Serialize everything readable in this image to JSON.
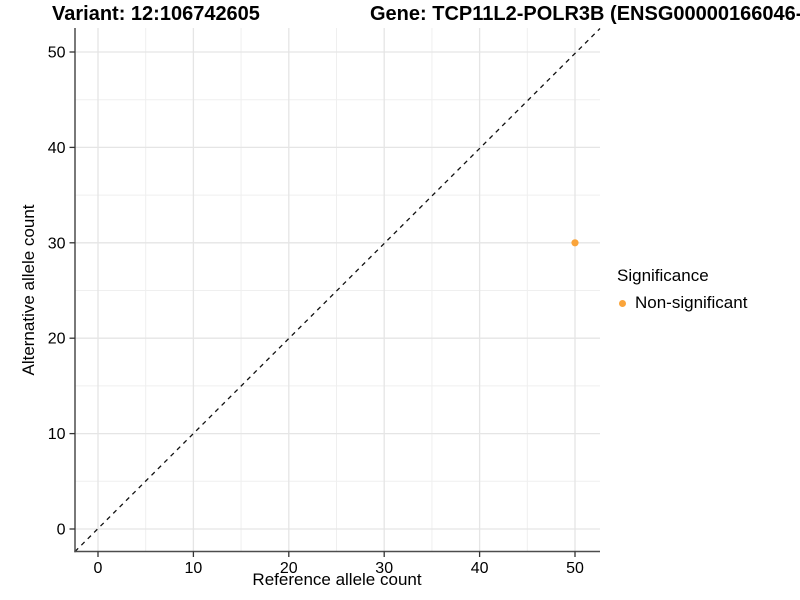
{
  "colors": {
    "background": "#FFFFFF",
    "grid_major": "#E5E5E5",
    "grid_minor": "#EFEFEF",
    "axis_line": "#4D4D4D",
    "tick": "#333333",
    "text": "#000000",
    "point": "#FAA43A"
  },
  "chart_data": {
    "type": "scatter",
    "titles": [
      {
        "id": "variant",
        "text": "Variant: 12:106742605"
      },
      {
        "id": "gene",
        "text": "Gene: TCP11L2-POLR3B (ENSG00000166046-"
      }
    ],
    "xlabel": "Reference allele count",
    "ylabel": "Alternative allele count",
    "xlim": [
      0,
      50
    ],
    "ylim": [
      0,
      50
    ],
    "x_ticks": [
      0,
      10,
      20,
      30,
      40,
      50
    ],
    "y_ticks": [
      0,
      10,
      20,
      30,
      40,
      50
    ],
    "x_minor_ticks": [
      5,
      15,
      25,
      35,
      45
    ],
    "y_minor_ticks": [
      5,
      15,
      25,
      35,
      45
    ],
    "grid": "major+minor",
    "identity_line": {
      "equation": "y = x",
      "style": "dashed",
      "color": "#111111"
    },
    "series": [
      {
        "name": "Non-significant",
        "color": "#FAA43A",
        "points": [
          {
            "x": 50,
            "y": 30
          }
        ]
      }
    ],
    "legend": {
      "title": "Significance",
      "position": "right",
      "items": [
        {
          "label": "Non-significant",
          "color": "#FAA43A"
        }
      ]
    }
  }
}
